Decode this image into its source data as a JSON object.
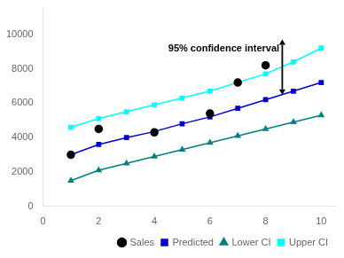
{
  "chart_data": {
    "type": "line",
    "series": [
      {
        "name": "Sales",
        "type": "scatter",
        "color": "#000000",
        "marker": "circle",
        "x": [
          1,
          2,
          4,
          6,
          7,
          8
        ],
        "values": [
          3000,
          4500,
          4300,
          5400,
          7200,
          8200
        ]
      },
      {
        "name": "Predicted",
        "type": "line",
        "color": "#0000cc",
        "marker": "square",
        "x": [
          1,
          2,
          3,
          4,
          5,
          6,
          7,
          8,
          9,
          10
        ],
        "values": [
          3000,
          3600,
          4000,
          4350,
          4800,
          5200,
          5700,
          6200,
          6700,
          7200
        ]
      },
      {
        "name": "Lower CI",
        "type": "line",
        "color": "#008080",
        "marker": "triangle",
        "x": [
          1,
          2,
          3,
          4,
          5,
          6,
          7,
          8,
          9,
          10
        ],
        "values": [
          1500,
          2100,
          2500,
          2900,
          3300,
          3700,
          4100,
          4500,
          4900,
          5300
        ]
      },
      {
        "name": "Upper CI",
        "type": "line",
        "color": "#00ffff",
        "marker": "square",
        "x": [
          1,
          2,
          3,
          4,
          5,
          6,
          7,
          8,
          9,
          10
        ],
        "values": [
          4600,
          5100,
          5500,
          5900,
          6300,
          6700,
          7200,
          7700,
          8400,
          9200
        ]
      }
    ],
    "xlim": [
      0,
      10.5
    ],
    "xticks": [
      0,
      2,
      4,
      6,
      8,
      10
    ],
    "ylim": [
      0,
      11500
    ],
    "yticks": [
      0,
      2000,
      4000,
      6000,
      8000,
      10000
    ],
    "grid": false,
    "legend": "lower right",
    "annotations": [
      {
        "type": "text",
        "text": "95% confidence interval",
        "x": 4.5,
        "y": 8900
      },
      {
        "type": "arrow",
        "x": 8.6,
        "y": [
          6500,
          9700
        ]
      }
    ]
  }
}
